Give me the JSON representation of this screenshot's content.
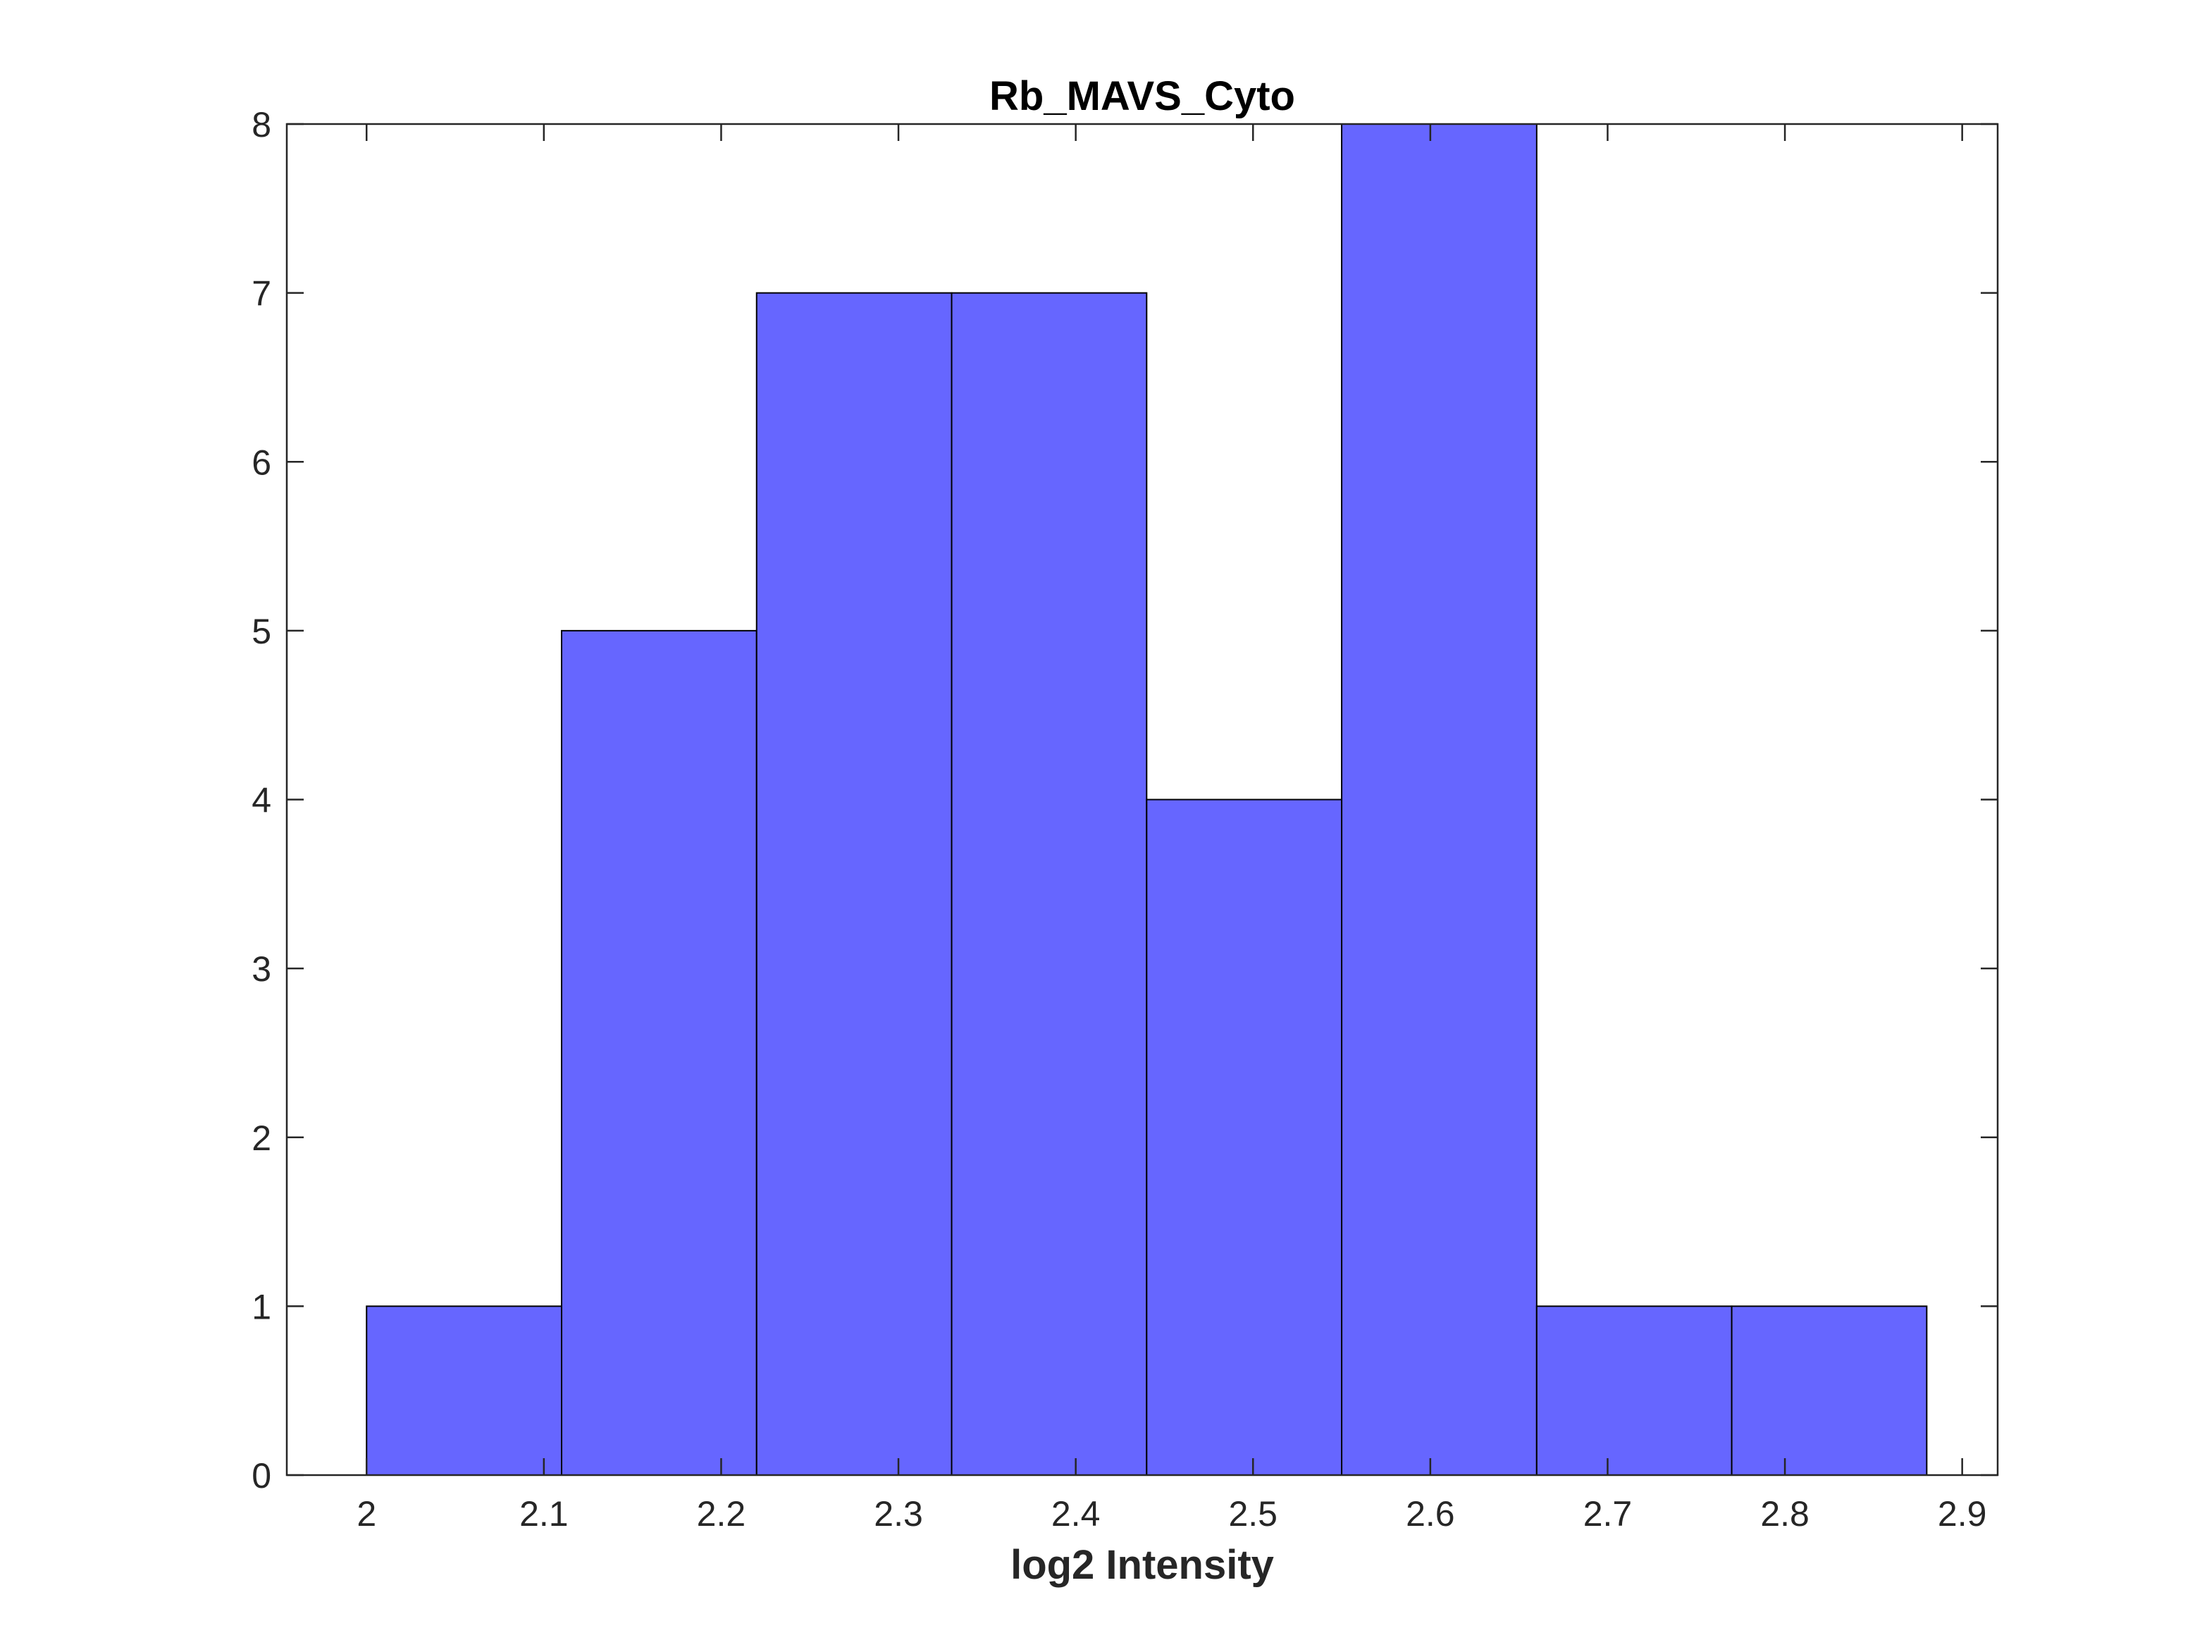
{
  "chart_data": {
    "type": "bar",
    "subtype": "histogram",
    "title": "Rb_MAVS_Cyto",
    "xlabel": "log2 Intensity",
    "ylabel": "",
    "bin_edges": [
      2.0,
      2.11,
      2.22,
      2.33,
      2.44,
      2.55,
      2.66,
      2.77,
      2.88
    ],
    "values": [
      1,
      5,
      7,
      7,
      4,
      8,
      1,
      1
    ],
    "xlim": [
      1.955,
      2.92
    ],
    "ylim": [
      0,
      8
    ],
    "x_ticks": [
      "2",
      "2.1",
      "2.2",
      "2.3",
      "2.4",
      "2.5",
      "2.6",
      "2.7",
      "2.8",
      "2.9"
    ],
    "x_tick_values": [
      2.0,
      2.1,
      2.2,
      2.3,
      2.4,
      2.5,
      2.6,
      2.7,
      2.8,
      2.9
    ],
    "y_ticks": [
      "0",
      "1",
      "2",
      "3",
      "4",
      "5",
      "6",
      "7",
      "8"
    ],
    "y_tick_values": [
      0,
      1,
      2,
      3,
      4,
      5,
      6,
      7,
      8
    ],
    "bar_color": "#6666ff",
    "bar_edge_color": "#000000",
    "grid": false,
    "box": true
  }
}
